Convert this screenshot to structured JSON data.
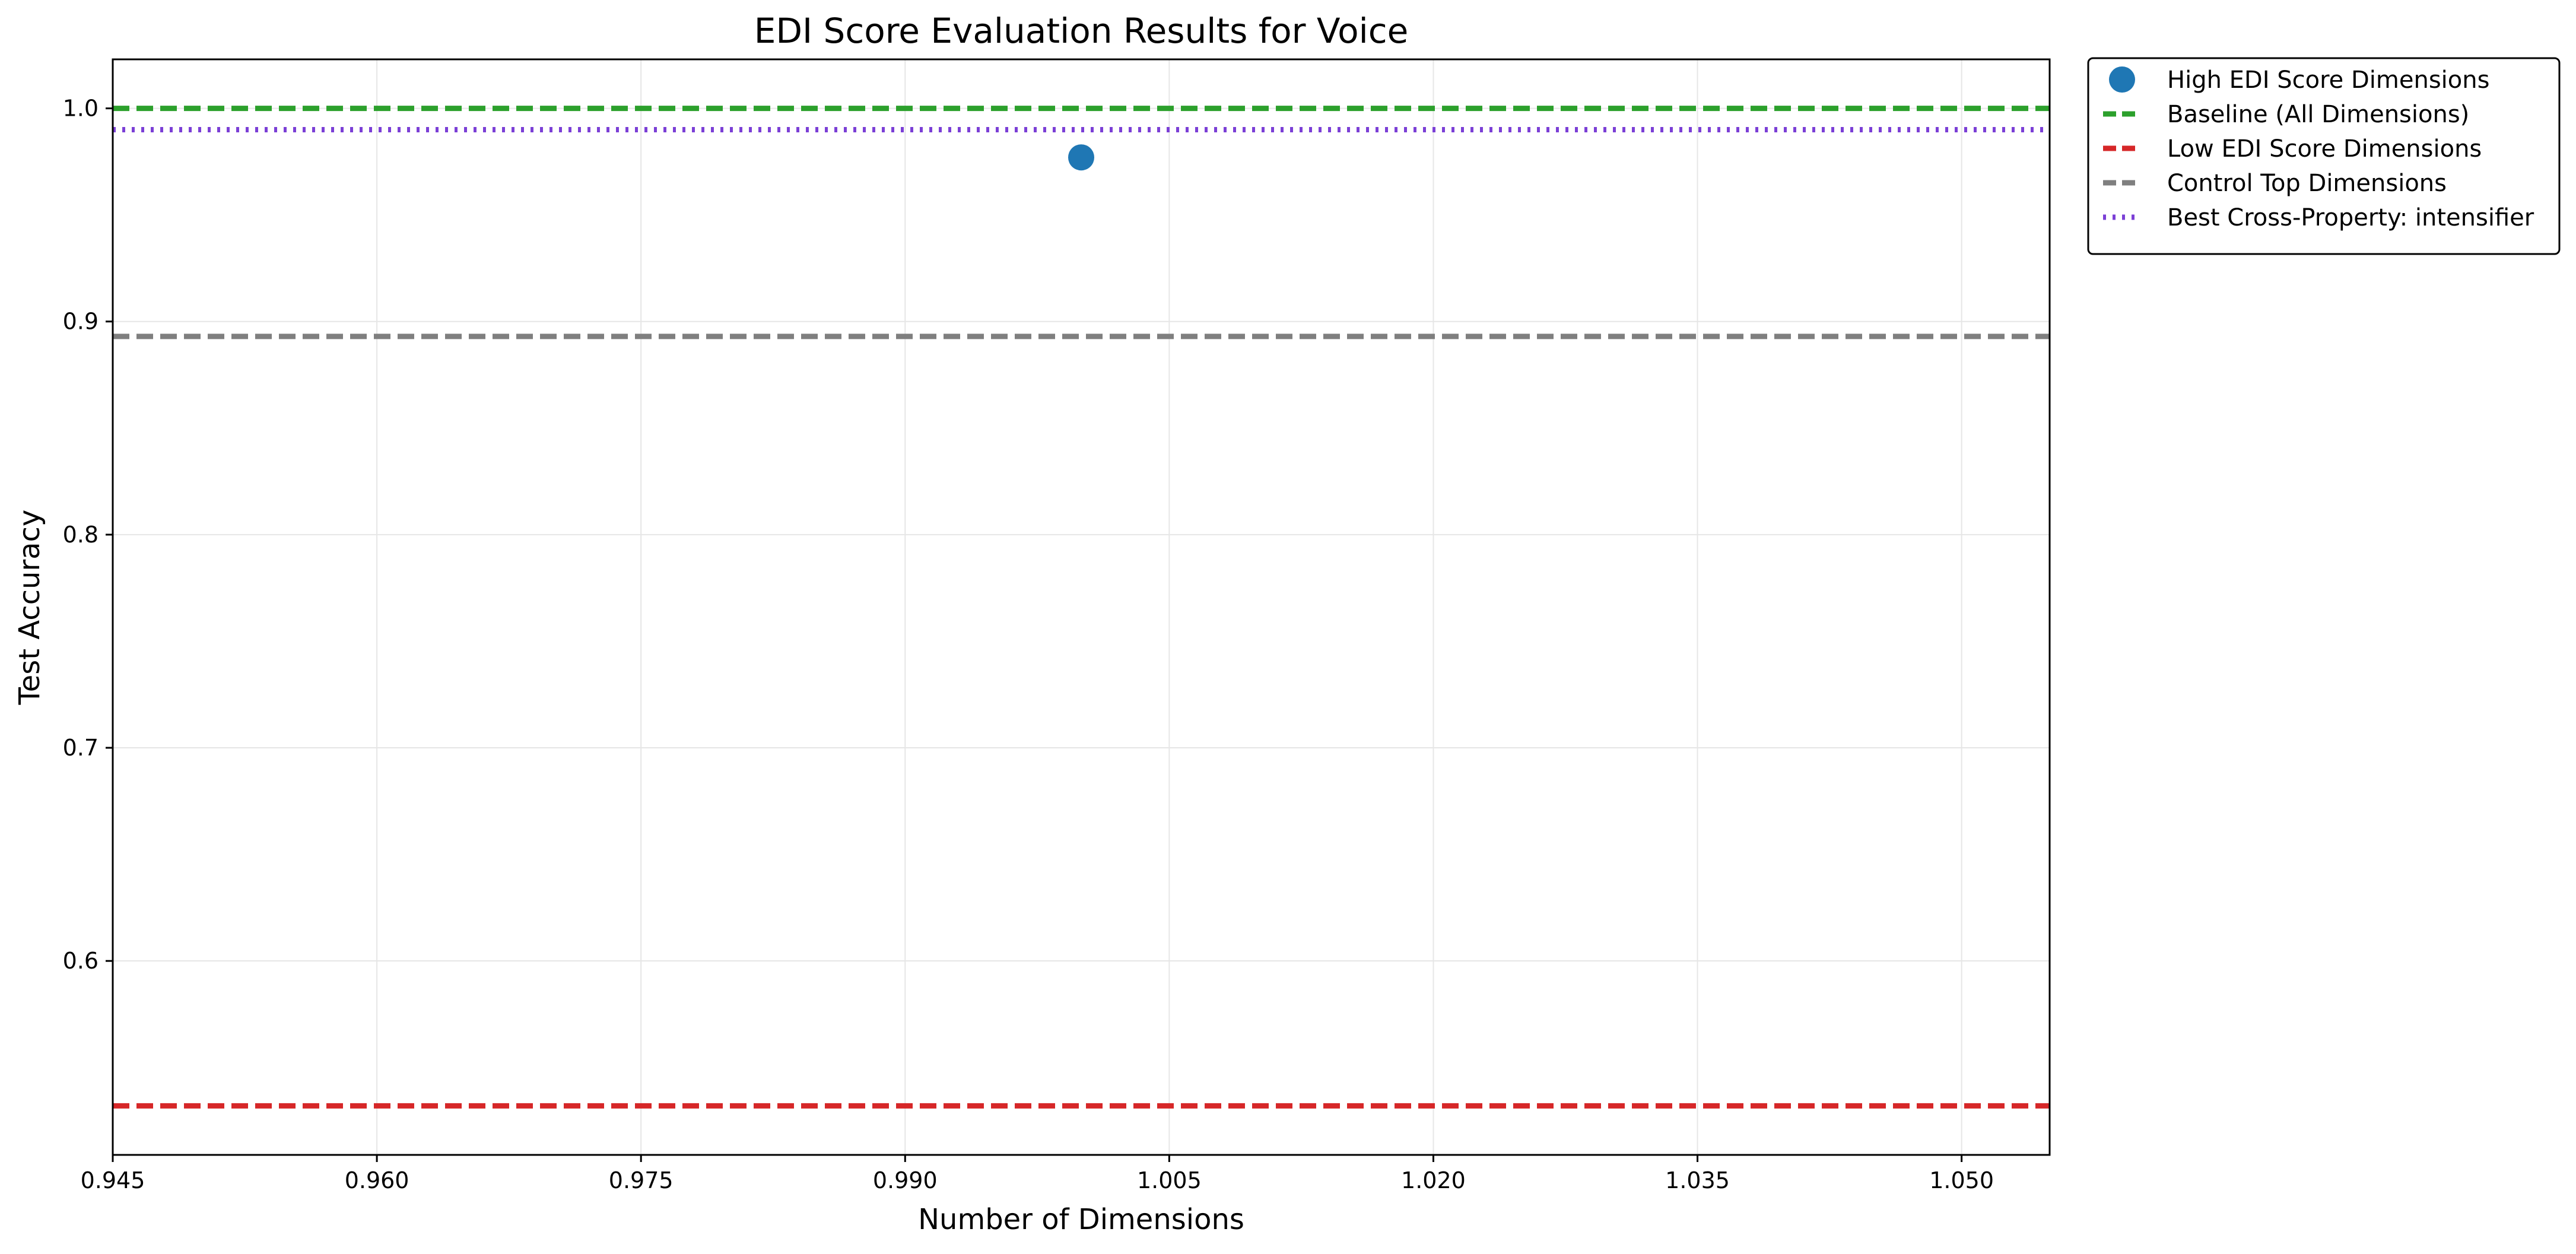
{
  "chart_data": {
    "type": "scatter",
    "title": "EDI Score Evaluation Results for Voice",
    "xlabel": "Number of Dimensions",
    "ylabel": "Test Accuracy",
    "xlim": [
      0.945,
      1.055
    ],
    "ylim": [
      0.509,
      1.023
    ],
    "xticks": [
      0.945,
      0.96,
      0.975,
      0.99,
      1.005,
      1.02,
      1.035,
      1.05
    ],
    "xtick_labels": [
      "0.945",
      "0.960",
      "0.975",
      "0.990",
      "1.005",
      "1.020",
      "1.035",
      "1.050"
    ],
    "yticks": [
      0.6,
      0.7,
      0.8,
      0.9,
      1.0
    ],
    "ytick_labels": [
      "0.6",
      "0.7",
      "0.8",
      "0.9",
      "1.0"
    ],
    "grid": true,
    "legend_position": "outside-top-right",
    "series": [
      {
        "name": "High EDI Score Dimensions",
        "kind": "scatter",
        "points": [
          {
            "x": 1.0,
            "y": 0.977
          }
        ],
        "color": "#1f77b4"
      },
      {
        "name": "Baseline (All Dimensions)",
        "kind": "hline",
        "y": 1.0,
        "style": "dashed",
        "color": "#2ca02c"
      },
      {
        "name": "Low EDI Score Dimensions",
        "kind": "hline",
        "y": 0.532,
        "style": "dashed",
        "color": "#d62728"
      },
      {
        "name": "Control Top Dimensions",
        "kind": "hline",
        "y": 0.893,
        "style": "dashed",
        "color": "#7f7f7f"
      },
      {
        "name": "Best Cross-Property: intensifier",
        "kind": "hline",
        "y": 0.99,
        "style": "dotted",
        "color": "#7b3fd6"
      }
    ]
  }
}
